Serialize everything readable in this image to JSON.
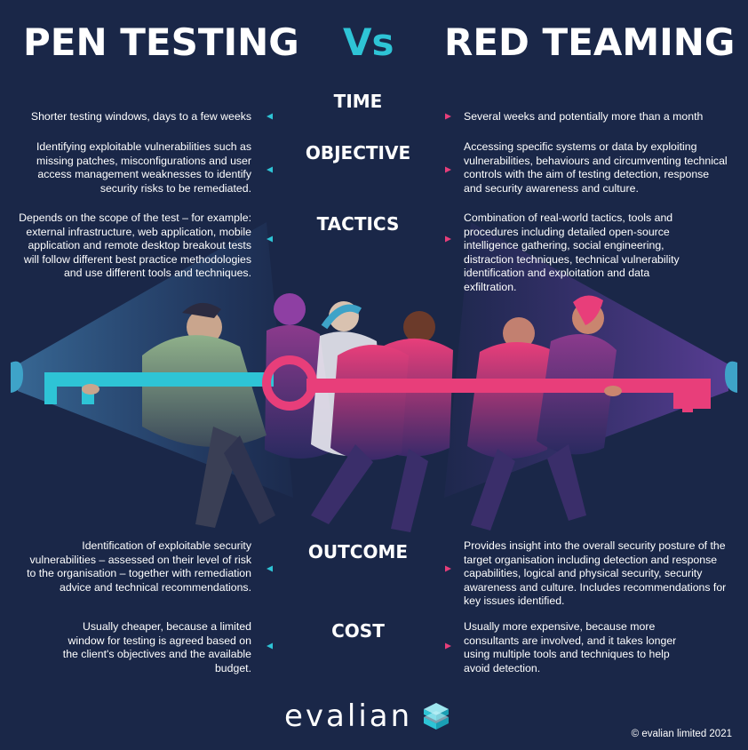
{
  "header": {
    "left": "PEN TESTING",
    "vs": "Vs",
    "right": "RED TEAMING"
  },
  "rows": [
    {
      "label": "TIME",
      "left": "Shorter testing windows, days to a few weeks",
      "right": "Several weeks and potentially more than a month"
    },
    {
      "label": "OBJECTIVE",
      "left": "Identifying exploitable vulnerabilities such as missing patches, misconfigurations and user access management weaknesses to identify security risks to be remediated.",
      "right": "Accessing specific systems or data by exploiting vulnerabilities, behaviours and circumventing technical controls with the aim of testing detection, response and security awareness and culture."
    },
    {
      "label": "TACTICS",
      "left": "Depends on the scope of the test – for example: external infrastructure, web application, mobile application and remote desktop breakout tests will follow different best practice methodologies and use different tools and techniques.",
      "right": "Combination of real-world tactics, tools and procedures including detailed open-source intelligence gathering, social engineering, distraction techniques, technical vulnerability identification and exploitation and data exfiltration."
    },
    {
      "label": "OUTCOME",
      "left": "Identification of exploitable security vulnerabilities – assessed on their level of risk to the organisation – together with remediation advice and technical recommendations.",
      "right": "Provides insight into the overall security posture of the target organisation including detection and response capabilities, logical and physical security, security awareness and culture. Includes recommendations for key issues identified."
    },
    {
      "label": "COST",
      "left": "Usually cheaper, because a limited window for testing is agreed based on the client's objectives and the available budget.",
      "right": "Usually more expensive, because more consultants are involved, and it takes longer using multiple tools and techniques to help avoid detection."
    }
  ],
  "footer": {
    "logo": "evalian",
    "copyright": "© evalian limited 2021"
  },
  "colors": {
    "background": "#1a2748",
    "teal": "#2ec4d6",
    "pink": "#e83e7a",
    "magenta": "#c2185b"
  },
  "icons": {
    "logo": "stacked-cube-icon",
    "illustration": "tug-of-war-key-illustration"
  }
}
